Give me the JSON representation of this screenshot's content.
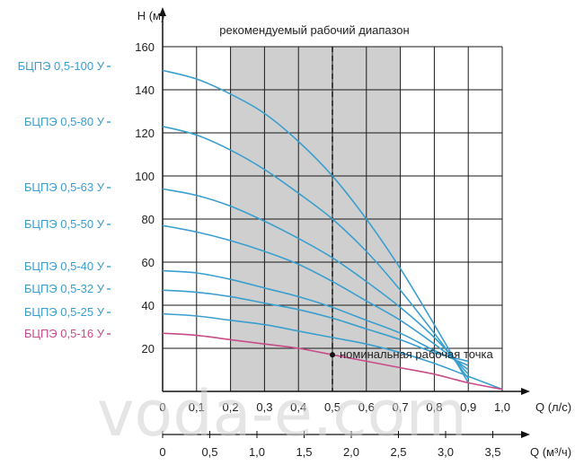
{
  "chart_data": {
    "type": "line",
    "title": "рекомендуемый рабочий диапазон",
    "ylabel": "H (м)",
    "xlabel": "Q (л/с)",
    "xlabel2": "Q (м³/ч)",
    "xlim": [
      0,
      1.0
    ],
    "ylim": [
      0,
      160
    ],
    "x_ticks": [
      "0",
      "0,1",
      "0,2",
      "0,3",
      "0,4",
      "0,5",
      "0,6",
      "0,7",
      "0,8",
      "0,9",
      "1,0"
    ],
    "x2_ticks": [
      {
        "value": 0,
        "label": "0"
      },
      {
        "value": 0.5,
        "label": "0,5"
      },
      {
        "value": 1.0,
        "label": "1,0"
      },
      {
        "value": 1.5,
        "label": "1,5"
      },
      {
        "value": 2.0,
        "label": "2,0"
      },
      {
        "value": 2.5,
        "label": "2,5"
      },
      {
        "value": 3.0,
        "label": "3,0"
      },
      {
        "value": 3.5,
        "label": "3,5"
      }
    ],
    "y_ticks": [
      "20",
      "40",
      "60",
      "80",
      "100",
      "120",
      "140",
      "160"
    ],
    "recommended_range_q": [
      0.2,
      0.7
    ],
    "nominal_q": 0.5,
    "nominal_label": "номинальная рабочая точка",
    "grid": true,
    "series": [
      {
        "name": "БЦПЭ 0,5-100 У",
        "color": "#3a9fcf",
        "x": [
          0,
          0.1,
          0.2,
          0.3,
          0.4,
          0.5,
          0.6,
          0.7,
          0.8,
          0.9
        ],
        "y": [
          149,
          145,
          138,
          129,
          116,
          100,
          80,
          57,
          31,
          4
        ]
      },
      {
        "name": "БЦПЭ 0,5-80 У",
        "color": "#3a9fcf",
        "x": [
          0,
          0.1,
          0.2,
          0.3,
          0.4,
          0.5,
          0.6,
          0.7,
          0.8,
          0.9
        ],
        "y": [
          123,
          119,
          112,
          103,
          92,
          80,
          65,
          47,
          27,
          6
        ]
      },
      {
        "name": "БЦПЭ 0,5-63 У",
        "color": "#3a9fcf",
        "x": [
          0,
          0.1,
          0.2,
          0.3,
          0.4,
          0.5,
          0.6,
          0.7,
          0.8,
          0.9
        ],
        "y": [
          94,
          91,
          86,
          79,
          71,
          62,
          51,
          39,
          25,
          8
        ]
      },
      {
        "name": "БЦПЭ 0,5-50 У",
        "color": "#3a9fcf",
        "x": [
          0,
          0.1,
          0.2,
          0.3,
          0.4,
          0.5,
          0.6,
          0.7,
          0.8,
          0.9
        ],
        "y": [
          77,
          74,
          70,
          65,
          59,
          51,
          42,
          33,
          22,
          10
        ]
      },
      {
        "name": "БЦПЭ 0,5-40 У",
        "color": "#3a9fcf",
        "x": [
          0,
          0.1,
          0.2,
          0.3,
          0.4,
          0.5,
          0.6,
          0.7,
          0.8,
          0.9
        ],
        "y": [
          56,
          55,
          52,
          48,
          44,
          39,
          33,
          27,
          19,
          12
        ]
      },
      {
        "name": "БЦПЭ 0,5-32 У",
        "color": "#3a9fcf",
        "x": [
          0,
          0.1,
          0.2,
          0.3,
          0.4,
          0.5,
          0.6,
          0.7,
          0.8,
          0.9
        ],
        "y": [
          47,
          46,
          44,
          41,
          38,
          34,
          29,
          24,
          18,
          14
        ]
      },
      {
        "name": "БЦПЭ 0,5-25 У",
        "color": "#3a9fcf",
        "x": [
          0,
          0.1,
          0.2,
          0.3,
          0.4,
          0.5,
          0.6,
          0.7,
          0.8,
          0.9,
          1.0
        ],
        "y": [
          36,
          35,
          33,
          31,
          28,
          25,
          22,
          18,
          13,
          7,
          1
        ]
      },
      {
        "name": "БЦПЭ 0,5-16 У",
        "color": "#c84b8a",
        "x": [
          0,
          0.1,
          0.2,
          0.3,
          0.4,
          0.5,
          0.6,
          0.7,
          0.8,
          0.9,
          1.0
        ],
        "y": [
          27,
          26,
          24,
          22,
          20,
          17,
          14,
          11,
          8,
          4,
          1
        ]
      }
    ]
  },
  "watermark": "voda-e.com",
  "colors": {
    "band": "#cfcfcf",
    "grid": "#1a1a1a",
    "series_blue": "#3a9fcf",
    "series_pink": "#c84b8a"
  }
}
